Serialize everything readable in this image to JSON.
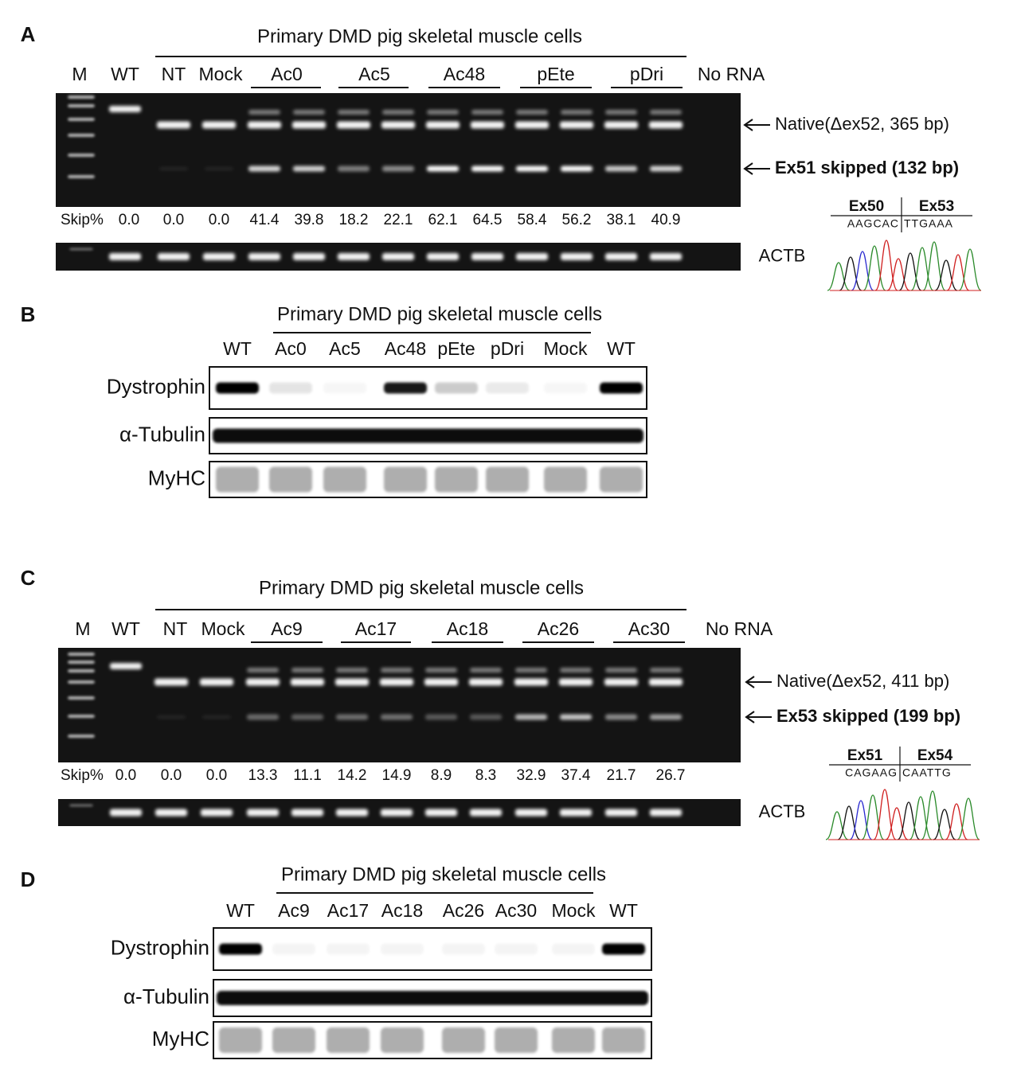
{
  "panels": [
    {
      "label": "A",
      "header": "Primary DMD pig skeletal muscle cells",
      "lanes": [
        "M",
        "WT",
        "NT",
        "Mock",
        "Ac0",
        "Ac5",
        "Ac48",
        "pEte",
        "pDri",
        "No RNA"
      ],
      "native": "Native(Δex52, 365 bp)",
      "skipped": "Ex51 skipped (132 bp)",
      "skip_label": "Skip%",
      "skip_values": [
        "0.0",
        "0.0",
        "0.0",
        "41.4",
        "39.8",
        "18.2",
        "22.1",
        "62.1",
        "64.5",
        "58.4",
        "56.2",
        "38.1",
        "40.9"
      ],
      "reference": "ACTB",
      "junction": {
        "left_exon": "Ex50",
        "right_exon": "Ex53",
        "left_seq": "AAGCAC",
        "right_seq": "TTGAAA"
      }
    },
    {
      "label": "B",
      "header": "Primary DMD pig skeletal muscle cells",
      "lanes": [
        "WT",
        "Ac0",
        "Ac5",
        "Ac48",
        "pEte",
        "pDri",
        "Mock",
        "WT"
      ],
      "rows": [
        "Dystrophin",
        "α-Tubulin",
        "MyHC"
      ]
    },
    {
      "label": "C",
      "header": "Primary DMD pig skeletal muscle cells",
      "lanes": [
        "M",
        "WT",
        "NT",
        "Mock",
        "Ac9",
        "Ac17",
        "Ac18",
        "Ac26",
        "Ac30",
        "No RNA"
      ],
      "native": "Native(Δex52, 411 bp)",
      "skipped": "Ex53 skipped (199 bp)",
      "skip_label": "Skip%",
      "skip_values": [
        "0.0",
        "0.0",
        "0.0",
        "13.3",
        "11.1",
        "14.2",
        "14.9",
        "8.9",
        "8.3",
        "32.9",
        "37.4",
        "21.7",
        "26.7"
      ],
      "reference": "ACTB",
      "junction": {
        "left_exon": "Ex51",
        "right_exon": "Ex54",
        "left_seq": "CAGAAG",
        "right_seq": "CAATTG"
      }
    },
    {
      "label": "D",
      "header": "Primary DMD pig skeletal muscle cells",
      "lanes": [
        "WT",
        "Ac9",
        "Ac17",
        "Ac18",
        "Ac26",
        "Ac30",
        "Mock",
        "WT"
      ],
      "rows": [
        "Dystrophin",
        "α-Tubulin",
        "MyHC"
      ]
    }
  ]
}
